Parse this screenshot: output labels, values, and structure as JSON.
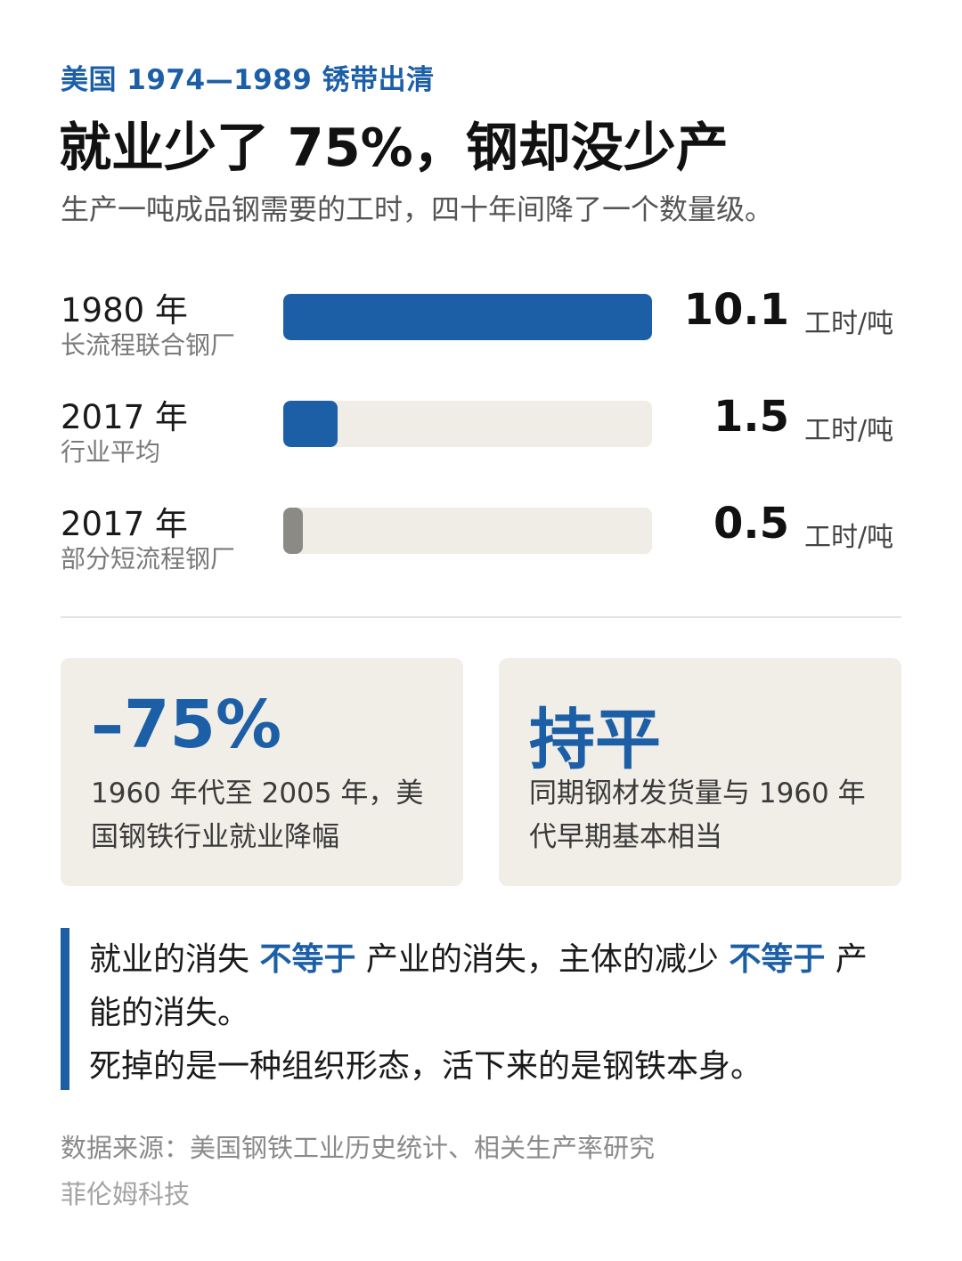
{
  "header": {
    "kicker": "美国 1974—1989 锈带出清",
    "title": "就业少了 75%，钢却没少产",
    "subtitle": "生产一吨成品钢需要的工时，四十年间降了一个数量级。"
  },
  "chart_data": {
    "type": "bar",
    "orientation": "horizontal",
    "categories": [
      "1980 年",
      "2017 年",
      "2017 年"
    ],
    "category_descriptions": [
      "长流程联合钢厂",
      "行业平均",
      "部分短流程钢厂"
    ],
    "values": [
      10.1,
      1.5,
      0.5
    ],
    "value_labels": [
      "10.1",
      "1.5",
      "0.5"
    ],
    "unit": "工时/吨",
    "xlim": [
      0,
      10.1
    ],
    "bar_colors": [
      "#1c5fa6",
      "#1c5fa6",
      "#8c8a85"
    ],
    "track_color": "#f0ede6",
    "grid": false
  },
  "stats": [
    {
      "big": "–75%",
      "text": "1960 年代至 2005 年，美国钢铁行业就业降幅"
    },
    {
      "big": "持平",
      "text": "同期钢材发货量与 1960 年代早期基本相当"
    }
  ],
  "quote": {
    "line1_part1": "就业的消失 ",
    "line1_em1": "不等于",
    "line1_part2": " 产业的消失，主体的减少 ",
    "line1_em2": "不等于",
    "line1_part3": " 产能的消失。",
    "line2": "死掉的是一种组织形态，活下来的是钢铁本身。"
  },
  "footer": {
    "source": "数据来源：美国钢铁工业历史统计、相关生产率研究",
    "brand": "菲伦姆科技"
  },
  "colors": {
    "accent": "#1c5fa6",
    "muted_bar": "#8c8a85",
    "card_bg": "#f1eee8"
  }
}
